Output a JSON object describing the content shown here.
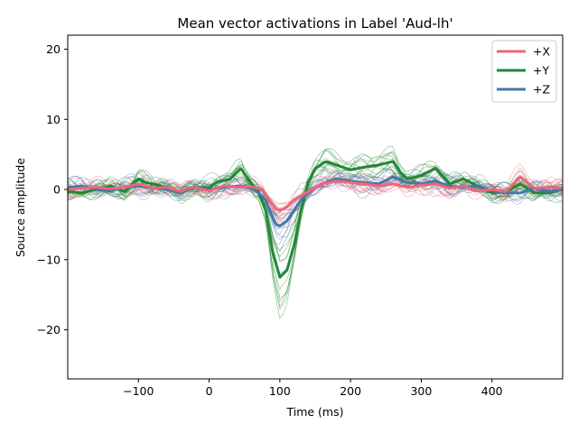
{
  "chart_data": {
    "type": "line",
    "title": "Mean vector activations in Label 'Aud-lh'",
    "xlabel": "Time (ms)",
    "ylabel": "Source amplitude",
    "xlim": [
      -200,
      500
    ],
    "ylim": [
      -27,
      22
    ],
    "xticks": [
      -100,
      0,
      100,
      200,
      300,
      400
    ],
    "yticks": [
      -20,
      -10,
      0,
      10,
      20
    ],
    "grid": false,
    "legend": {
      "position": "top-right"
    },
    "colors": {
      "X": "#ee6677",
      "Y": "#228833",
      "Z": "#4477aa"
    },
    "series": [
      {
        "name": "+X",
        "color": "#ee6677",
        "x": [
          -200,
          -180,
          -160,
          -140,
          -120,
          -100,
          -90,
          -80,
          -60,
          -40,
          -30,
          -20,
          0,
          20,
          40,
          60,
          75,
          85,
          95,
          100,
          110,
          120,
          140,
          160,
          180,
          200,
          220,
          240,
          260,
          280,
          300,
          320,
          340,
          360,
          380,
          400,
          420,
          440,
          460,
          480,
          500
        ],
        "values": [
          0,
          0.2,
          0.3,
          0.1,
          0.3,
          0.8,
          0.5,
          0.2,
          0.3,
          -0.3,
          0.2,
          0.3,
          -0.2,
          0.5,
          0.3,
          0.4,
          0,
          -1.5,
          -2.8,
          -3,
          -2.5,
          -1.5,
          -0.3,
          0.8,
          1.2,
          1,
          0.8,
          0.5,
          0.8,
          0.3,
          0.6,
          0.8,
          0.2,
          0.5,
          -0.2,
          0,
          -0.3,
          1.8,
          0.2,
          0.3,
          0.2
        ]
      },
      {
        "name": "+Y",
        "color": "#228833",
        "x": [
          -200,
          -180,
          -160,
          -140,
          -120,
          -100,
          -90,
          -80,
          -60,
          -40,
          -30,
          -20,
          0,
          10,
          30,
          45,
          60,
          70,
          80,
          90,
          100,
          110,
          120,
          130,
          140,
          150,
          165,
          180,
          200,
          220,
          240,
          260,
          270,
          280,
          300,
          320,
          340,
          360,
          380,
          400,
          420,
          440,
          460,
          480,
          500
        ],
        "values": [
          -0.3,
          -0.5,
          0,
          0.5,
          -0.3,
          1.5,
          1,
          0.8,
          0.3,
          -0.5,
          0.2,
          0.3,
          0.2,
          1,
          1.5,
          3,
          0.8,
          -0.5,
          -3,
          -9,
          -12.5,
          -11.5,
          -8,
          -3,
          1,
          3,
          4,
          3.5,
          2.8,
          3.2,
          3.5,
          4,
          2.5,
          1.5,
          2,
          3,
          0.8,
          1.5,
          0.5,
          -0.5,
          -0.3,
          0.8,
          -0.5,
          -0.5,
          0
        ]
      },
      {
        "name": "+Z",
        "color": "#4477aa",
        "x": [
          -200,
          -180,
          -160,
          -140,
          -120,
          -100,
          -90,
          -80,
          -60,
          -40,
          -30,
          -20,
          0,
          20,
          40,
          60,
          70,
          80,
          90,
          95,
          100,
          110,
          120,
          130,
          140,
          150,
          165,
          180,
          200,
          220,
          240,
          260,
          280,
          300,
          320,
          340,
          360,
          380,
          400,
          420,
          440,
          460,
          480,
          500
        ],
        "values": [
          0.3,
          0.5,
          0,
          -0.2,
          0.3,
          0.5,
          0.3,
          0.2,
          0,
          -0.5,
          0,
          0.2,
          0,
          0.3,
          0.5,
          0.2,
          -0.5,
          -1.5,
          -4,
          -5,
          -5.2,
          -4.5,
          -3,
          -1.5,
          -0.5,
          0.2,
          1,
          1.5,
          1.2,
          1,
          0.8,
          1.8,
          1,
          0.8,
          1.2,
          0.5,
          0.3,
          0.5,
          -0.2,
          -0.5,
          -0.5,
          0.2,
          -0.3,
          0
        ]
      }
    ]
  }
}
